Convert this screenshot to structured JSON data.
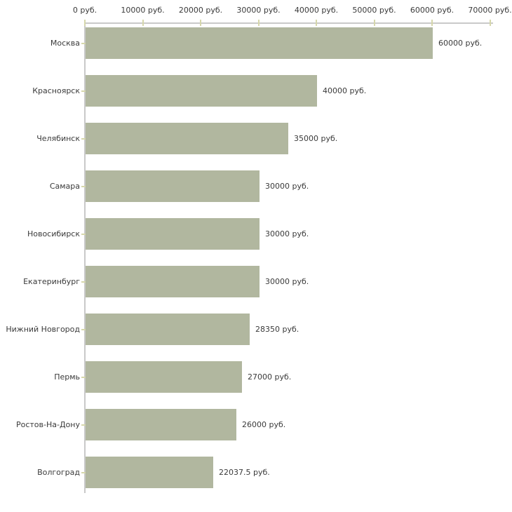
{
  "chart_data": {
    "type": "bar",
    "orientation": "horizontal",
    "title": "",
    "categories": [
      "Москва",
      "Красноярск",
      "Челябинск",
      "Самара",
      "Новосибирск",
      "Екатеринбург",
      "Нижний Новгород",
      "Пермь",
      "Ростов-На-Дону",
      "Волгоград"
    ],
    "values": [
      60000,
      40000,
      35000,
      30000,
      30000,
      30000,
      28350,
      27000,
      26000,
      22037.5
    ],
    "value_labels": [
      "60000 руб.",
      "40000 руб.",
      "35000 руб.",
      "30000 руб.",
      "30000 руб.",
      "30000 руб.",
      "28350 руб.",
      "27000 руб.",
      "26000 руб.",
      "22037.5 руб."
    ],
    "x_axis": {
      "position": "top",
      "min": 0,
      "max": 70000,
      "tick_values": [
        0,
        10000,
        20000,
        30000,
        40000,
        50000,
        60000,
        70000
      ],
      "tick_labels": [
        "0 руб.",
        "10000 руб.",
        "20000 руб.",
        "30000 руб.",
        "40000 руб.",
        "50000 руб.",
        "60000 руб.",
        "70000 руб."
      ]
    },
    "unit": "руб.",
    "grid": false,
    "legend": false,
    "colors": {
      "bar": "#b1b79f",
      "axis_line": "#c9c9c9",
      "tick_mark": "#d6d7ab",
      "text": "#3a3a3a",
      "background": "#ffffff"
    }
  }
}
